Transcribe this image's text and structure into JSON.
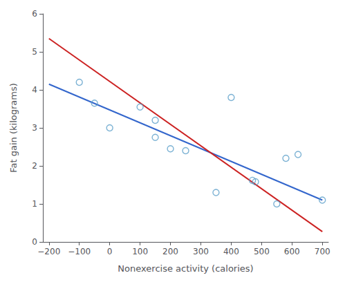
{
  "chart_data": {
    "type": "scatter",
    "xlabel": "Nonexercise activity (calories)",
    "ylabel": "Fat gain (kilograms)",
    "xlim": [
      -220,
      720
    ],
    "ylim": [
      0,
      6
    ],
    "xticks": [
      {
        "value": -200,
        "label": "−200"
      },
      {
        "value": -100,
        "label": "−100"
      },
      0,
      100,
      200,
      300,
      400,
      500,
      600,
      700
    ],
    "yticks": [
      0,
      1,
      2,
      3,
      4,
      5,
      6
    ],
    "grid": false,
    "series": [
      {
        "type": "scatter",
        "color": "#5b9fc9",
        "marker": "open_circle",
        "x": [
          -100,
          -50,
          0,
          100,
          150,
          150,
          200,
          250,
          350,
          400,
          470,
          480,
          550,
          580,
          620,
          700
        ],
        "values": [
          4.2,
          3.65,
          3.0,
          3.55,
          3.2,
          2.75,
          2.45,
          2.4,
          1.3,
          3.8,
          1.62,
          1.58,
          1.0,
          2.2,
          2.3,
          1.1
        ]
      },
      {
        "type": "line",
        "color": "#3366cc",
        "x": [
          -200,
          700
        ],
        "values": [
          4.15,
          1.1
        ]
      },
      {
        "type": "line",
        "color": "#cc2222",
        "x": [
          -200,
          700
        ],
        "values": [
          5.35,
          0.27
        ]
      }
    ]
  }
}
